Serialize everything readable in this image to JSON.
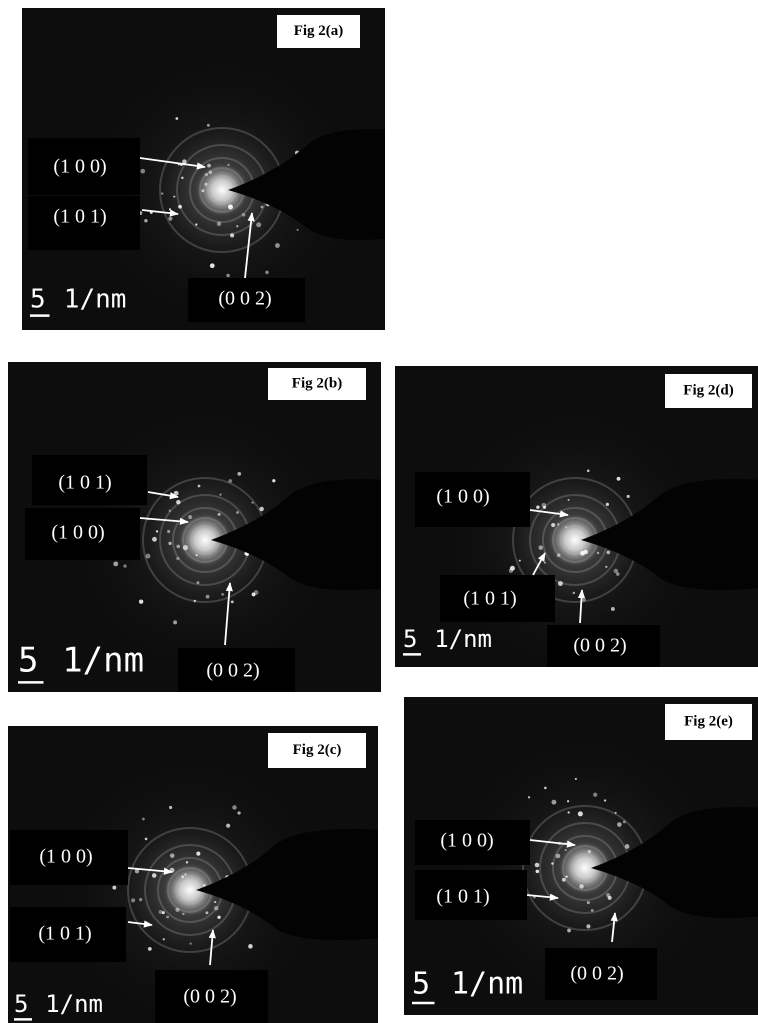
{
  "panels": [
    {
      "label": "Fig 2(a)",
      "annotations": [
        "(1 0 0)",
        "(1 0 1)",
        "(0 0 2)"
      ],
      "scale_number": "5",
      "scale_unit": "1/nm"
    },
    {
      "label": "Fig 2(b)",
      "annotations": [
        "(1 0 1)",
        "(1 0 0)",
        "(0 0 2)"
      ],
      "scale_number": "5",
      "scale_unit": "1/nm"
    },
    {
      "label": "Fig 2(d)",
      "annotations": [
        "(1 0 0)",
        "(1 0 1)",
        "(0 0 2)"
      ],
      "scale_number": "5",
      "scale_unit": "1/nm"
    },
    {
      "label": "Fig 2(c)",
      "annotations": [
        "(1 0 0)",
        "(1 0 1)",
        "(0 0 2)"
      ],
      "scale_number": "5",
      "scale_unit": "1/nm"
    },
    {
      "label": "Fig 2(e)",
      "annotations": [
        "(1 0 0)",
        "(1 0 1)",
        "(0 0 2)"
      ],
      "scale_number": "5",
      "scale_unit": "1/nm"
    }
  ]
}
